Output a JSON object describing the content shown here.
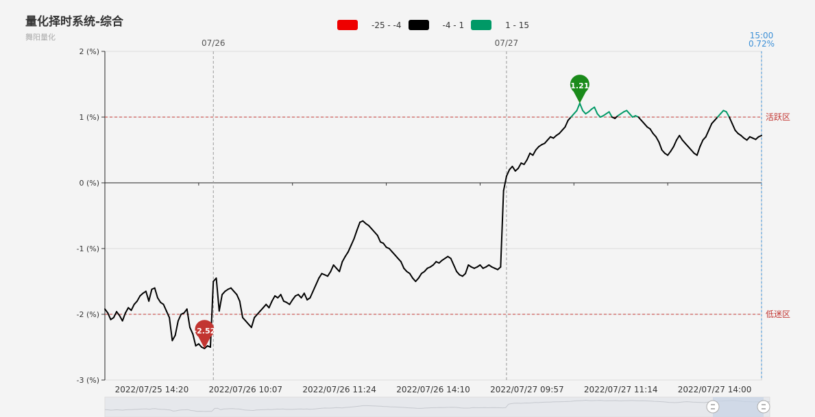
{
  "title": "量化择时系统-综合",
  "subtitle": "舞阳量化",
  "legend": [
    {
      "label": "-25 - -4",
      "color": "#ee0000"
    },
    {
      "label": "-4 - 1",
      "color": "#000000"
    },
    {
      "label": "1 - 15",
      "color": "#009966"
    }
  ],
  "chart_data": {
    "type": "line",
    "ylabel_unit": "(%)",
    "ylim": [
      -3,
      2
    ],
    "yticks": [
      2,
      1,
      0,
      -1,
      -2,
      -3
    ],
    "xticks": [
      "2022/07/25 14:20",
      "2022/07/26 10:07",
      "2022/07/26 11:24",
      "2022/07/26 14:10",
      "2022/07/27 09:57",
      "2022/07/27 11:14",
      "2022/07/27 14:00"
    ],
    "day_markers": [
      "07/26",
      "07/27"
    ],
    "last_point": {
      "time": "15:00",
      "value": "0.72%"
    },
    "plot_lines": [
      {
        "value": 1,
        "label": "活跃区"
      },
      {
        "value": -2,
        "label": "低迷区"
      }
    ],
    "markers": [
      {
        "label": "-2.52",
        "value": -2.52,
        "color": "#c23531"
      },
      {
        "label": "1.21",
        "value": 1.21,
        "color": "#1a8a1a"
      }
    ],
    "series": [
      {
        "values": [
          -1.92,
          -1.98,
          -2.08,
          -2.05,
          -1.96,
          -2.02,
          -2.1,
          -1.98,
          -1.9,
          -1.94,
          -1.85,
          -1.8,
          -1.72,
          -1.68,
          -1.65,
          -1.8,
          -1.62,
          -1.6,
          -1.75,
          -1.82,
          -1.85,
          -1.95,
          -2.05,
          -2.4,
          -2.32,
          -2.1,
          -2.0,
          -1.98,
          -1.92,
          -2.2,
          -2.3,
          -2.48,
          -2.45,
          -2.5,
          -2.52,
          -2.48,
          -2.5,
          -1.5,
          -1.45,
          -1.95,
          -1.7,
          -1.65,
          -1.62,
          -1.6,
          -1.65,
          -1.7,
          -1.8,
          -2.05,
          -2.1,
          -2.15,
          -2.2,
          -2.05,
          -2.0,
          -1.95,
          -1.9,
          -1.85,
          -1.9,
          -1.8,
          -1.72,
          -1.75,
          -1.7,
          -1.8,
          -1.82,
          -1.85,
          -1.78,
          -1.72,
          -1.7,
          -1.75,
          -1.68,
          -1.78,
          -1.75,
          -1.65,
          -1.55,
          -1.45,
          -1.38,
          -1.4,
          -1.42,
          -1.35,
          -1.25,
          -1.3,
          -1.35,
          -1.2,
          -1.12,
          -1.05,
          -0.95,
          -0.85,
          -0.72,
          -0.6,
          -0.58,
          -0.62,
          -0.65,
          -0.7,
          -0.75,
          -0.8,
          -0.9,
          -0.92,
          -0.98,
          -1.0,
          -1.05,
          -1.1,
          -1.15,
          -1.2,
          -1.3,
          -1.35,
          -1.38,
          -1.45,
          -1.5,
          -1.45,
          -1.38,
          -1.35,
          -1.3,
          -1.28,
          -1.25,
          -1.2,
          -1.22,
          -1.18,
          -1.15,
          -1.12,
          -1.15,
          -1.25,
          -1.35,
          -1.4,
          -1.42,
          -1.38,
          -1.25,
          -1.28,
          -1.3,
          -1.28,
          -1.25,
          -1.3,
          -1.28,
          -1.25,
          -1.28,
          -1.3,
          -1.32,
          -1.28,
          -0.12,
          0.1,
          0.2,
          0.25,
          0.18,
          0.22,
          0.3,
          0.28,
          0.35,
          0.45,
          0.42,
          0.5,
          0.55,
          0.58,
          0.6,
          0.65,
          0.7,
          0.68,
          0.72,
          0.75,
          0.8,
          0.85,
          0.95,
          1.0,
          1.05,
          1.1,
          1.21,
          1.1,
          1.05,
          1.08,
          1.12,
          1.15,
          1.05,
          1.0,
          1.02,
          1.05,
          1.08,
          1.0,
          0.98,
          1.02,
          1.05,
          1.08,
          1.1,
          1.05,
          1.0,
          1.02,
          1.0,
          0.95,
          0.9,
          0.85,
          0.82,
          0.75,
          0.7,
          0.62,
          0.5,
          0.45,
          0.42,
          0.48,
          0.55,
          0.65,
          0.72,
          0.65,
          0.6,
          0.55,
          0.5,
          0.45,
          0.42,
          0.55,
          0.65,
          0.7,
          0.8,
          0.9,
          0.95,
          1.0,
          1.05,
          1.1,
          1.08,
          1.0,
          0.9,
          0.8,
          0.75,
          0.72,
          0.68,
          0.65,
          0.7,
          0.68,
          0.66,
          0.7,
          0.72
        ]
      }
    ]
  }
}
